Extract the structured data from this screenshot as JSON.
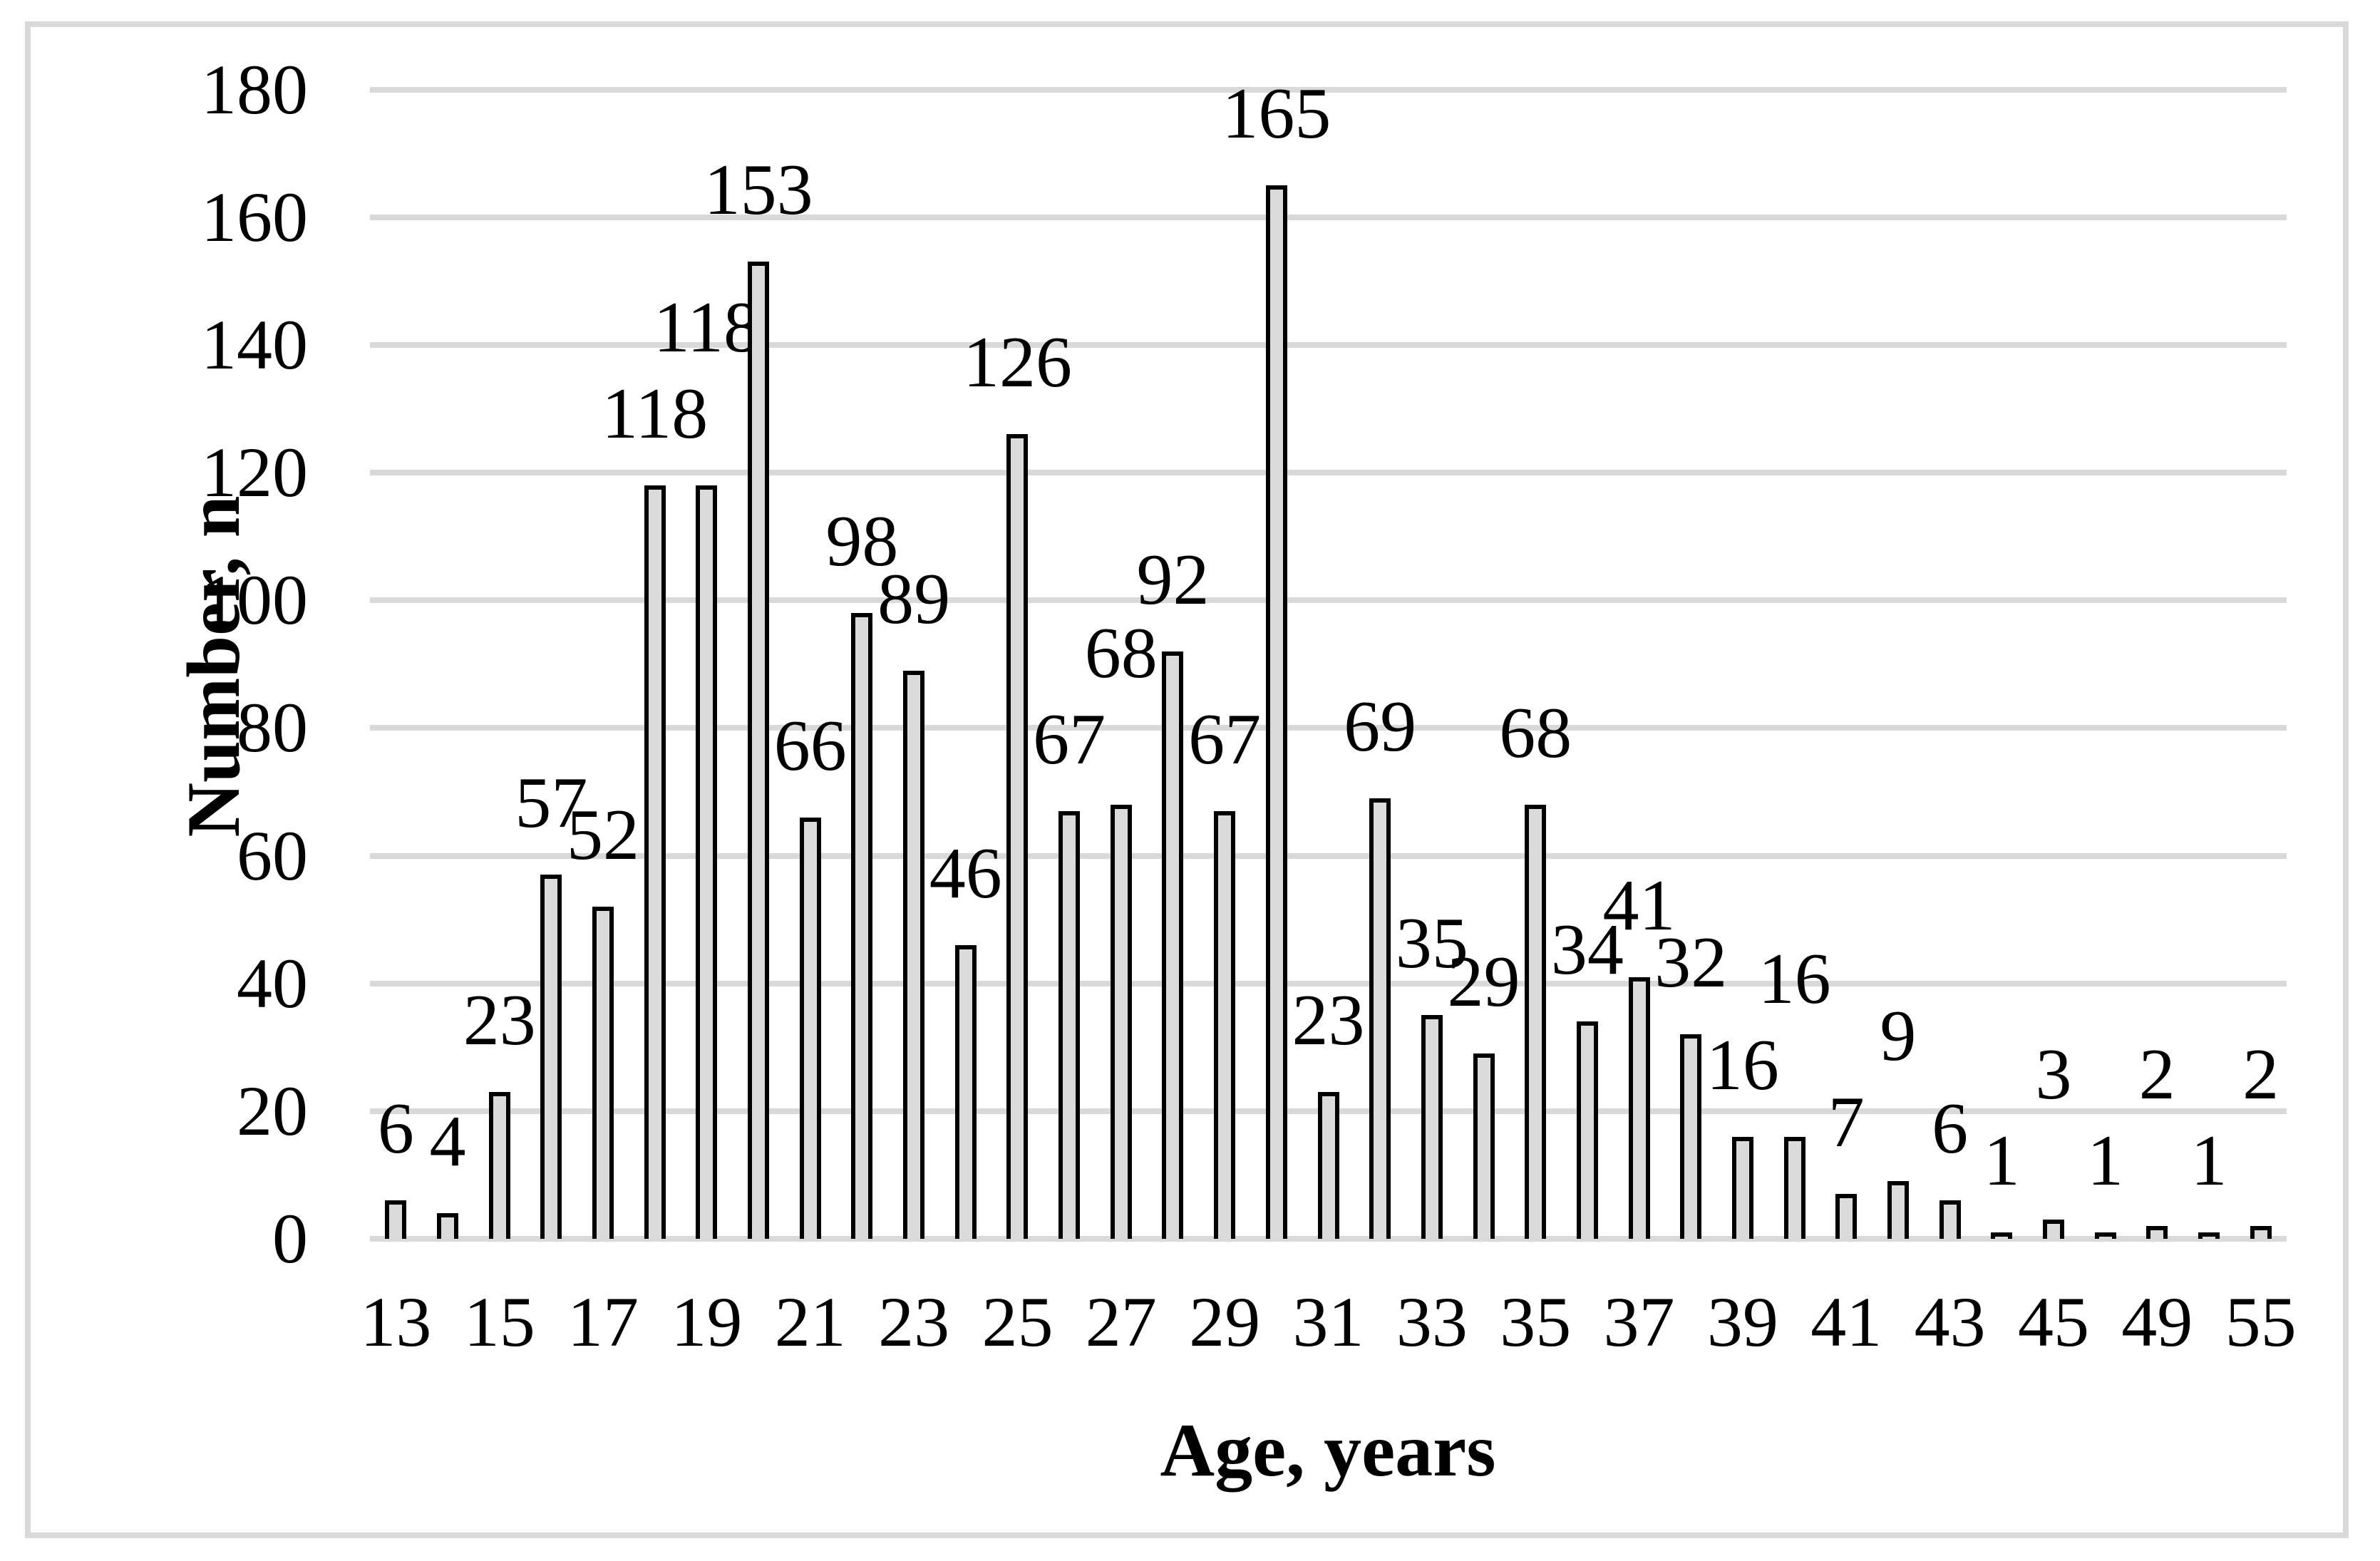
{
  "chart_data": {
    "type": "bar",
    "title": "",
    "xlabel": "Age, years",
    "ylabel": "Number, n",
    "ylim": [
      0,
      180
    ],
    "ytick_step": 20,
    "yticks": [
      0,
      20,
      40,
      60,
      80,
      100,
      120,
      140,
      160,
      180
    ],
    "values": [
      6,
      4,
      23,
      57,
      52,
      118,
      118,
      153,
      66,
      98,
      89,
      46,
      126,
      67,
      68,
      92,
      67,
      165,
      23,
      69,
      35,
      29,
      68,
      34,
      41,
      32,
      16,
      16,
      7,
      9,
      6,
      1,
      3,
      1,
      2,
      1,
      2
    ],
    "data_labels": [
      "6",
      "4",
      "23",
      "57",
      "52",
      "118",
      "118",
      "153",
      "66",
      "98",
      "89",
      "46",
      "126",
      "67",
      "68",
      "92",
      "67",
      "165",
      "23",
      "69",
      "35",
      "29",
      "68",
      "34",
      "41",
      "32",
      "16",
      "16",
      "7",
      "9",
      "6",
      "1",
      "3",
      "1",
      "2",
      "1",
      "2"
    ],
    "x_tick_labels": [
      "13",
      "15",
      "17",
      "19",
      "21",
      "23",
      "25",
      "27",
      "29",
      "31",
      "33",
      "35",
      "37",
      "39",
      "41",
      "43",
      "45",
      "49",
      "55"
    ],
    "x_tick_every": 2,
    "grid": "horizontal",
    "legend": "none",
    "colors": {
      "bar_fill": "#DBDBDB",
      "bar_border": "#000000",
      "gridline": "#D9D9D9",
      "frame_border": "#D9D9D9",
      "text": "#000000",
      "background": "#FFFFFF"
    }
  }
}
